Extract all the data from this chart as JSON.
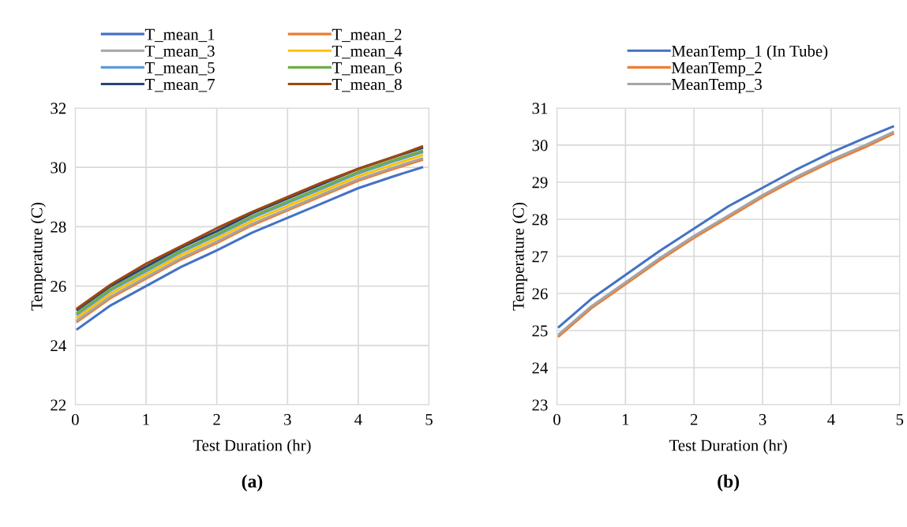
{
  "chart_data": [
    {
      "type": "line",
      "xlabel": "Test Duration (hr)",
      "ylabel": "Temperature (C)",
      "annotations": [
        "(a)"
      ],
      "x": [
        0.03,
        0.5,
        1,
        1.5,
        2,
        2.5,
        3,
        3.5,
        4,
        4.5,
        4.9
      ],
      "xlim": [
        0,
        5
      ],
      "xticks": [
        0,
        1,
        2,
        3,
        4,
        5
      ],
      "ylim": [
        22,
        32
      ],
      "yticks": [
        22,
        24,
        26,
        28,
        30,
        32
      ],
      "grid": true,
      "legend": "top",
      "line_style": "solid",
      "marker": "none",
      "series": [
        {
          "name": "T_mean_1",
          "color": "#4472c4",
          "values": [
            24.55,
            25.35,
            26.0,
            26.65,
            27.2,
            27.8,
            28.3,
            28.8,
            29.3,
            29.7,
            30.0
          ]
        },
        {
          "name": "T_mean_2",
          "color": "#ed7d31",
          "values": [
            24.8,
            25.6,
            26.25,
            26.9,
            27.45,
            28.05,
            28.55,
            29.05,
            29.55,
            29.95,
            30.25
          ]
        },
        {
          "name": "T_mean_3",
          "color": "#a5a5a5",
          "values": [
            24.85,
            25.65,
            26.3,
            26.95,
            27.5,
            28.1,
            28.6,
            29.1,
            29.6,
            30.0,
            30.3
          ]
        },
        {
          "name": "T_mean_4",
          "color": "#ffc000",
          "values": [
            24.95,
            25.75,
            26.4,
            27.05,
            27.6,
            28.2,
            28.7,
            29.2,
            29.7,
            30.1,
            30.4
          ]
        },
        {
          "name": "T_mean_5",
          "color": "#5b9bd5",
          "values": [
            25.05,
            25.85,
            26.5,
            27.15,
            27.7,
            28.3,
            28.8,
            29.3,
            29.8,
            30.2,
            30.5
          ]
        },
        {
          "name": "T_mean_6",
          "color": "#70ad47",
          "values": [
            25.1,
            25.9,
            26.55,
            27.2,
            27.75,
            28.35,
            28.85,
            29.35,
            29.85,
            30.25,
            30.55
          ]
        },
        {
          "name": "T_mean_7",
          "color": "#264478",
          "values": [
            25.2,
            26.0,
            26.65,
            27.3,
            27.85,
            28.45,
            28.95,
            29.45,
            29.95,
            30.35,
            30.65
          ]
        },
        {
          "name": "T_mean_8",
          "color": "#9e480e",
          "values": [
            25.25,
            26.05,
            26.75,
            27.35,
            27.95,
            28.5,
            29.0,
            29.5,
            29.95,
            30.35,
            30.7
          ]
        }
      ]
    },
    {
      "type": "line",
      "xlabel": "Test Duration (hr)",
      "ylabel": "Temperature (C)",
      "annotations": [
        "(b)"
      ],
      "x": [
        0.03,
        0.5,
        1,
        1.5,
        2,
        2.5,
        3,
        3.5,
        4,
        4.5,
        4.9
      ],
      "xlim": [
        0,
        5
      ],
      "xticks": [
        0,
        1,
        2,
        3,
        4,
        5
      ],
      "ylim": [
        23,
        31
      ],
      "yticks": [
        23,
        24,
        25,
        26,
        27,
        28,
        29,
        30,
        31
      ],
      "grid": true,
      "legend": "top",
      "line_style": "solid",
      "marker": "none",
      "series": [
        {
          "name": "MeanTemp_1 (In Tube)",
          "color": "#4472c4",
          "values": [
            25.1,
            25.85,
            26.5,
            27.15,
            27.75,
            28.35,
            28.85,
            29.35,
            29.8,
            30.2,
            30.5
          ]
        },
        {
          "name": "MeanTemp_2",
          "color": "#ed7d31",
          "values": [
            24.85,
            25.6,
            26.25,
            26.9,
            27.5,
            28.05,
            28.6,
            29.1,
            29.55,
            29.95,
            30.3
          ]
        },
        {
          "name": "MeanTemp_3",
          "color": "#a5a5a5",
          "values": [
            24.9,
            25.65,
            26.3,
            26.95,
            27.55,
            28.1,
            28.65,
            29.15,
            29.6,
            30.0,
            30.35
          ]
        }
      ]
    }
  ]
}
